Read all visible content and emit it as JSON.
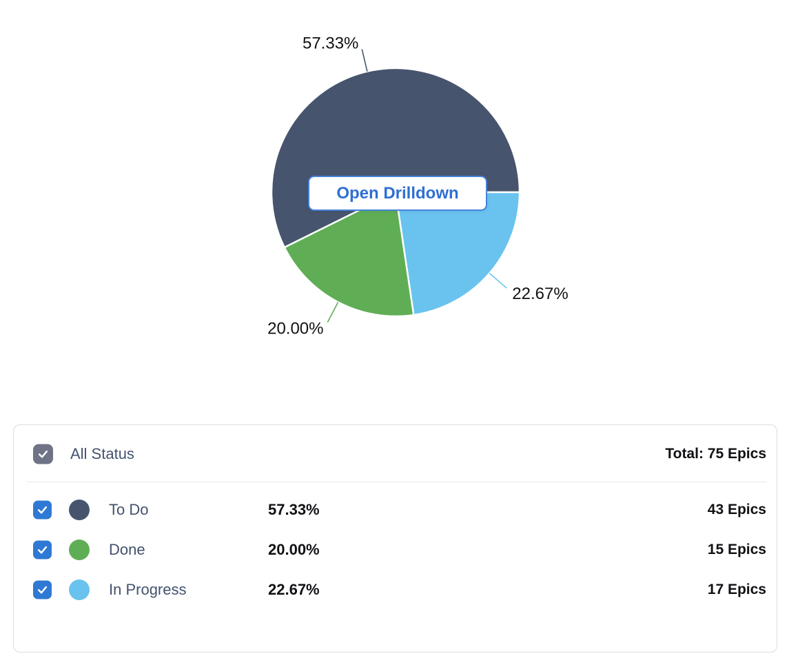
{
  "chart_data": {
    "type": "pie",
    "unit": "Epics",
    "total": 75,
    "start_angle_deg": 243.6,
    "legend_position": "bottom-panel",
    "center_button_label": "Open Drilldown",
    "slices": [
      {
        "name": "To Do",
        "value": 43,
        "pct": 57.33,
        "pct_label": "57.33%",
        "color": "#47546D"
      },
      {
        "name": "In Progress",
        "value": 17,
        "pct": 22.67,
        "pct_label": "22.67%",
        "color": "#69C3EE"
      },
      {
        "name": "Done",
        "value": 15,
        "pct": 20.0,
        "pct_label": "20.00%",
        "color": "#5FAE55"
      }
    ]
  },
  "legend": {
    "header": {
      "label": "All Status",
      "total_label": "Total: 75 Epics",
      "checked": true
    },
    "rows": [
      {
        "label": "To Do",
        "pct": "57.33%",
        "count": "43 Epics",
        "color": "#47546D",
        "checked": true
      },
      {
        "label": "Done",
        "pct": "20.00%",
        "count": "15 Epics",
        "color": "#5FAE55",
        "checked": true
      },
      {
        "label": "In Progress",
        "pct": "22.67%",
        "count": "17 Epics",
        "color": "#69C3EE",
        "checked": true
      }
    ]
  },
  "colors": {
    "checkbox_blue": "#2E79D3",
    "checkbox_gray": "#6F7386",
    "accent_blue": "#2E6FD2",
    "panel_border": "#D9DCE1",
    "divider": "#E5E7EA",
    "label_text": "#42526E",
    "value_text": "#101114",
    "slice_separator": "#FFFFFF"
  }
}
